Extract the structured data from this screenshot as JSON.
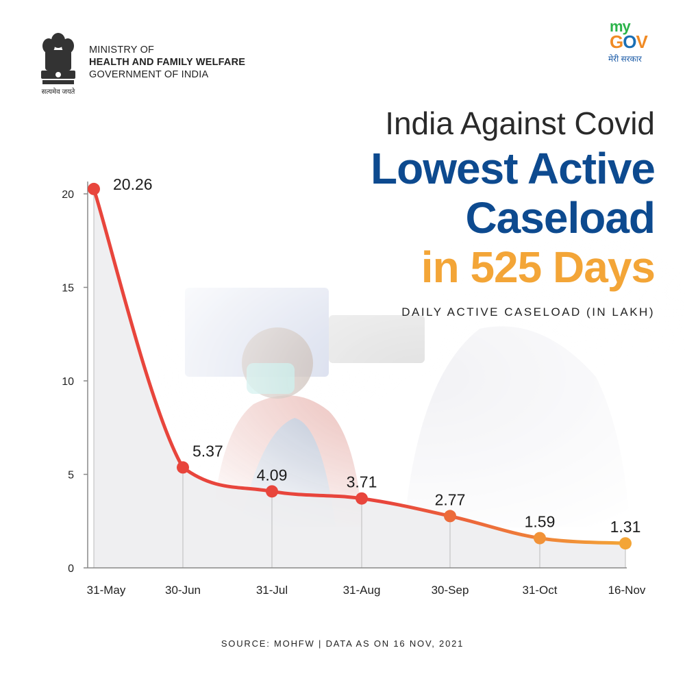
{
  "header": {
    "ministry_line1": "MINISTRY OF",
    "ministry_line2": "HEALTH AND FAMILY WELFARE",
    "ministry_line3": "GOVERNMENT OF INDIA",
    "emblem_caption": "सत्यमेव जयते",
    "logo_my": "my",
    "logo_g": "G",
    "logo_o": "O",
    "logo_v": "V",
    "logo_tagline": "मेरी सरकार"
  },
  "headline": {
    "line1": "India Against Covid",
    "line2": "Lowest Active",
    "line3": "Caseload",
    "line4": "in 525 Days"
  },
  "chart_data": {
    "type": "line",
    "title": "DAILY ACTIVE CASELOAD (IN LAKH)",
    "categories": [
      "31-May",
      "30-Jun",
      "31-Jul",
      "31-Aug",
      "30-Sep",
      "31-Oct",
      "16-Nov"
    ],
    "values": [
      20.26,
      5.37,
      4.09,
      3.71,
      2.77,
      1.59,
      1.31
    ],
    "value_labels": [
      "20.26",
      "5.37",
      "4.09",
      "3.71",
      "2.77",
      "1.59",
      "1.31"
    ],
    "yticks": [
      "0",
      "5",
      "10",
      "15",
      "20"
    ],
    "ylim": [
      0,
      20.5
    ],
    "xlabel": "",
    "ylabel": "",
    "colors": {
      "start": "#e8453c",
      "end": "#f3a537",
      "fill": "#ececee",
      "grid": "#bbbbbb"
    }
  },
  "footer": {
    "source": "SOURCE: MOHFW  |  DATA AS ON 16 NOV, 2021"
  }
}
